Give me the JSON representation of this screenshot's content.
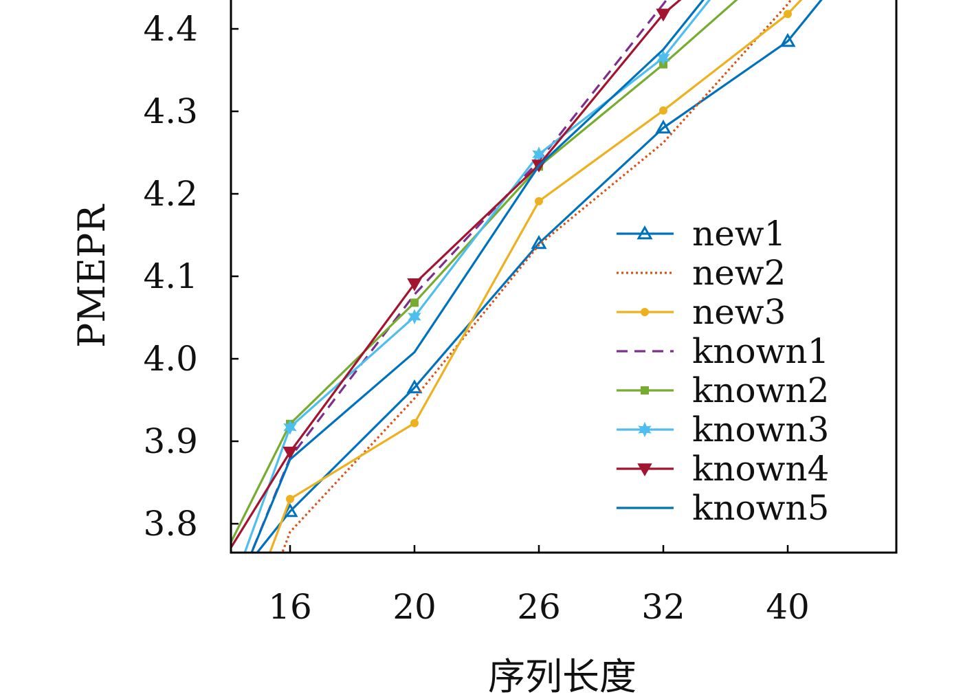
{
  "chart_data": {
    "type": "line",
    "title": "",
    "xlabel": "序列长度",
    "ylabel": "PMEPR",
    "categories": [
      "16",
      "20",
      "26",
      "32",
      "40"
    ],
    "ylim": [
      3.765,
      4.435
    ],
    "yticks": [
      "3.8",
      "3.9",
      "4.0",
      "4.1",
      "4.2",
      "4.3",
      "4.4"
    ],
    "grid": false,
    "legend_position": "right",
    "series": [
      {
        "name": "new1",
        "color": "#0072BD",
        "dash": "solid",
        "marker": "triangle-up",
        "points": [
          [
            -0.45,
            3.73
          ],
          [
            0,
            3.815
          ],
          [
            1,
            3.965
          ],
          [
            2,
            4.14
          ],
          [
            3,
            4.28
          ],
          [
            4,
            4.385
          ],
          [
            4.35,
            4.45
          ]
        ]
      },
      {
        "name": "new2",
        "color": "#D95319",
        "dash": "dotted",
        "marker": "none",
        "points": [
          [
            -0.1,
            3.75
          ],
          [
            0,
            3.79
          ],
          [
            1,
            3.952
          ],
          [
            2,
            4.138
          ],
          [
            3,
            4.262
          ],
          [
            4,
            4.43
          ],
          [
            4.1,
            4.45
          ]
        ]
      },
      {
        "name": "new3",
        "color": "#EDB120",
        "dash": "solid",
        "marker": "circle",
        "points": [
          [
            -0.2,
            3.75
          ],
          [
            0,
            3.83
          ],
          [
            1,
            3.922
          ],
          [
            2,
            4.191
          ],
          [
            3,
            4.301
          ],
          [
            4,
            4.418
          ],
          [
            4.2,
            4.45
          ]
        ]
      },
      {
        "name": "known1",
        "color": "#7E2F8E",
        "dash": "dashed",
        "marker": "none",
        "points": [
          [
            -0.35,
            3.75
          ],
          [
            0,
            3.88
          ],
          [
            1,
            4.078
          ],
          [
            2,
            4.24
          ],
          [
            3,
            4.43
          ],
          [
            3.1,
            4.45
          ]
        ]
      },
      {
        "name": "known2",
        "color": "#77AC30",
        "dash": "solid",
        "marker": "square",
        "points": [
          [
            -0.5,
            3.77
          ],
          [
            0,
            3.921
          ],
          [
            1,
            4.068
          ],
          [
            2,
            4.233
          ],
          [
            3,
            4.357
          ],
          [
            3.7,
            4.45
          ]
        ]
      },
      {
        "name": "known3",
        "color": "#4DBEEE",
        "dash": "solid",
        "marker": "star",
        "points": [
          [
            -0.4,
            3.75
          ],
          [
            0,
            3.917
          ],
          [
            1,
            4.051
          ],
          [
            2,
            4.248
          ],
          [
            3,
            4.365
          ],
          [
            3.45,
            4.45
          ]
        ]
      },
      {
        "name": "known4",
        "color": "#A2142F",
        "dash": "solid",
        "marker": "triangle-down",
        "points": [
          [
            -0.5,
            3.765
          ],
          [
            0,
            3.887
          ],
          [
            1,
            4.091
          ],
          [
            2,
            4.235
          ],
          [
            3,
            4.418
          ],
          [
            3.25,
            4.45
          ]
        ]
      },
      {
        "name": "known5",
        "color": "#0072BD",
        "dash": "solid",
        "marker": "none",
        "points": [
          [
            -0.35,
            3.75
          ],
          [
            0,
            3.878
          ],
          [
            1,
            4.008
          ],
          [
            2,
            4.234
          ],
          [
            3,
            4.375
          ],
          [
            3.4,
            4.45
          ]
        ]
      }
    ]
  }
}
